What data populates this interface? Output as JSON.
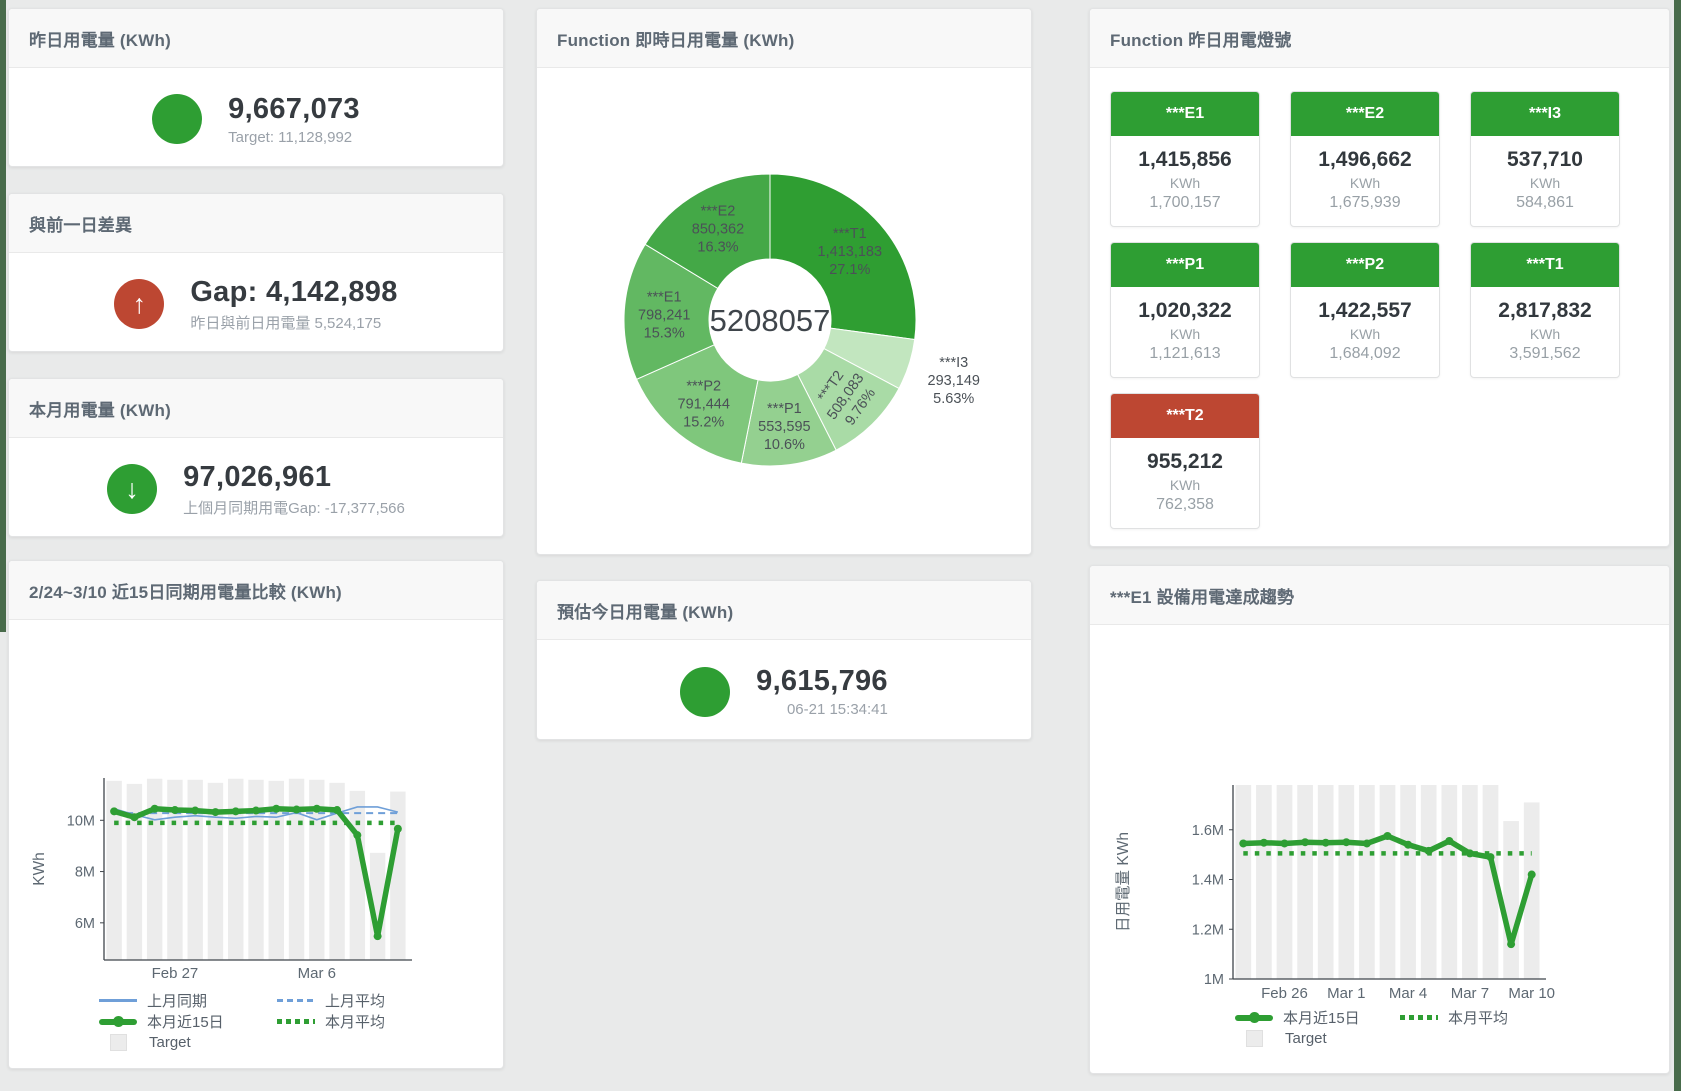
{
  "colors": {
    "green": "#2e9e33",
    "red": "#bd4732",
    "blue": "#6f9fd8",
    "target_bar": "#ececec",
    "axis": "#3f454b",
    "tick_text": "#5d6872",
    "donut_label_text": "#4b5157",
    "edge_strip": "#486b4b"
  },
  "cards": {
    "yesterday": {
      "title": "昨日用電量 (KWh)",
      "value": "9,667,073",
      "subtext": "Target: 11,128,992",
      "status": "green"
    },
    "gap_prev_day": {
      "title": "與前一日差異",
      "value": "Gap: 4,142,898",
      "subtext": "昨日與前日用電量 5,524,175",
      "glyph": "↑",
      "status": "red"
    },
    "month": {
      "title": "本月用電量 (KWh)",
      "value": "97,026,961",
      "subtext": "上個月同期用電Gap: -17,377,566",
      "glyph": "↓",
      "status": "green"
    },
    "estimate": {
      "title": "預估今日用電量 (KWh)",
      "value": "9,615,796",
      "subtext": "06-21 15:34:41",
      "status": "green"
    },
    "donut_panel": {
      "title": "Function 即時日用電量 (KWh)"
    },
    "lights_panel": {
      "title": "Function 昨日用電燈號"
    },
    "compare_panel": {
      "title": "2/24~3/10 近15日同期用電量比較 (KWh)"
    },
    "e1_panel": {
      "title": "***E1 設備用電達成趨勢"
    }
  },
  "lights": {
    "items": [
      {
        "label": "***E1",
        "value": "1,415,856",
        "unit": "KWh",
        "target": "1,700,157",
        "status": "green"
      },
      {
        "label": "***E2",
        "value": "1,496,662",
        "unit": "KWh",
        "target": "1,675,939",
        "status": "green"
      },
      {
        "label": "***I3",
        "value": "537,710",
        "unit": "KWh",
        "target": "584,861",
        "status": "green"
      },
      {
        "label": "***P1",
        "value": "1,020,322",
        "unit": "KWh",
        "target": "1,121,613",
        "status": "green"
      },
      {
        "label": "***P2",
        "value": "1,422,557",
        "unit": "KWh",
        "target": "1,684,092",
        "status": "green"
      },
      {
        "label": "***T1",
        "value": "2,817,832",
        "unit": "KWh",
        "target": "3,591,562",
        "status": "green"
      },
      {
        "label": "***T2",
        "value": "955,212",
        "unit": "KWh",
        "target": "762,358",
        "status": "red"
      }
    ]
  },
  "chart_data": [
    {
      "type": "pie",
      "title": "Function 即時日用電量 (KWh)",
      "center_total": "5208057",
      "slices": [
        {
          "name": "***T1",
          "value": 1413183,
          "display": "1,413,183",
          "pct": "27.1%",
          "color": "#2f9e32"
        },
        {
          "name": "***I3",
          "value": 293149,
          "display": "293,149",
          "pct": "5.63%",
          "color": "#c2e6bf",
          "label_outside": true
        },
        {
          "name": "***T2",
          "value": 508083,
          "display": "508,083",
          "pct": "9.76%",
          "color": "#a9dba6",
          "rotate_label": true
        },
        {
          "name": "***P1",
          "value": 553595,
          "display": "553,595",
          "pct": "10.6%",
          "color": "#94d090"
        },
        {
          "name": "***P2",
          "value": 791444,
          "display": "791,444",
          "pct": "15.2%",
          "color": "#7fc77c"
        },
        {
          "name": "***E1",
          "value": 798241,
          "display": "798,241",
          "pct": "15.3%",
          "color": "#62b862"
        },
        {
          "name": "***E2",
          "value": 850362,
          "display": "850,362",
          "pct": "16.3%",
          "color": "#44a847"
        }
      ]
    },
    {
      "type": "line",
      "title": "2/24~3/10 近15日同期用電量比較 (KWh)",
      "ylabel": "KWh",
      "unit": "M",
      "ylim": [
        4.55,
        11.65
      ],
      "yticks": [
        {
          "v": 6,
          "label": "6M"
        },
        {
          "v": 8,
          "label": "8M"
        },
        {
          "v": 10,
          "label": "10M"
        }
      ],
      "x_ticks": [
        {
          "index": 3,
          "label": "Feb 27"
        },
        {
          "index": 10,
          "label": "Mar 6"
        }
      ],
      "target_bars": [
        11.54,
        11.42,
        11.62,
        11.58,
        11.58,
        11.46,
        11.62,
        11.58,
        11.54,
        11.62,
        11.58,
        11.46,
        11.15,
        8.73,
        11.12
      ],
      "series": [
        {
          "name": "上月同期",
          "style": "thin",
          "color": "#6f9fd8",
          "values": [
            10.45,
            10.22,
            10.02,
            10.12,
            10.18,
            10.12,
            10.08,
            10.15,
            10.12,
            10.3,
            10.02,
            10.28,
            10.52,
            10.52,
            10.32
          ]
        },
        {
          "name": "上月平均",
          "style": "dashed",
          "color": "#6f9fd8",
          "const": 10.28
        },
        {
          "name": "本月平均",
          "style": "dotted",
          "color": "#2e9e33",
          "const": 9.9
        },
        {
          "name": "本月近15日",
          "style": "thick",
          "color": "#2e9e33",
          "values": [
            10.35,
            10.12,
            10.45,
            10.4,
            10.38,
            10.32,
            10.35,
            10.38,
            10.45,
            10.42,
            10.45,
            10.4,
            9.42,
            5.48,
            9.67
          ]
        }
      ],
      "legend_rows": [
        [
          {
            "label": "上月同期",
            "swatch": "thin",
            "color": "#6f9fd8"
          },
          {
            "label": "上月平均",
            "swatch": "dashed",
            "color": "#6f9fd8"
          }
        ],
        [
          {
            "label": "本月近15日",
            "swatch": "thick",
            "color": "#2e9e33"
          },
          {
            "label": "本月平均",
            "swatch": "dotted",
            "color": "#2e9e33"
          }
        ],
        [
          {
            "label": "Target",
            "swatch": "square",
            "color": "#ececec"
          }
        ]
      ]
    },
    {
      "type": "line",
      "title": "***E1 設備用電達成趨勢",
      "ylabel": "日用電量 KWh",
      "unit": "M",
      "ylim": [
        1.0,
        1.78
      ],
      "yticks": [
        {
          "v": 1,
          "label": "1M"
        },
        {
          "v": 1.2,
          "label": "1.2M"
        },
        {
          "v": 1.4,
          "label": "1.4M"
        },
        {
          "v": 1.6,
          "label": "1.6M"
        }
      ],
      "x_ticks": [
        {
          "index": 2,
          "label": "Feb 26"
        },
        {
          "index": 5,
          "label": "Mar 1"
        },
        {
          "index": 8,
          "label": "Mar 4"
        },
        {
          "index": 11,
          "label": "Mar 7"
        },
        {
          "index": 14,
          "label": "Mar 10"
        }
      ],
      "target_bars": [
        1.78,
        1.78,
        1.78,
        1.78,
        1.78,
        1.78,
        1.78,
        1.78,
        1.78,
        1.78,
        1.78,
        1.78,
        1.78,
        1.635,
        1.71
      ],
      "series": [
        {
          "name": "本月平均",
          "style": "dotted",
          "color": "#2e9e33",
          "const": 1.505
        },
        {
          "name": "本月近15日",
          "style": "thick",
          "color": "#2e9e33",
          "values": [
            1.545,
            1.548,
            1.545,
            1.55,
            1.548,
            1.55,
            1.545,
            1.575,
            1.54,
            1.515,
            1.555,
            1.505,
            1.49,
            1.14,
            1.42
          ]
        }
      ],
      "legend_rows": [
        [
          {
            "label": "本月近15日",
            "swatch": "thick",
            "color": "#2e9e33"
          },
          {
            "label": "本月平均",
            "swatch": "dotted",
            "color": "#2e9e33"
          }
        ],
        [
          {
            "label": "Target",
            "swatch": "square",
            "color": "#ececec"
          }
        ]
      ]
    }
  ]
}
